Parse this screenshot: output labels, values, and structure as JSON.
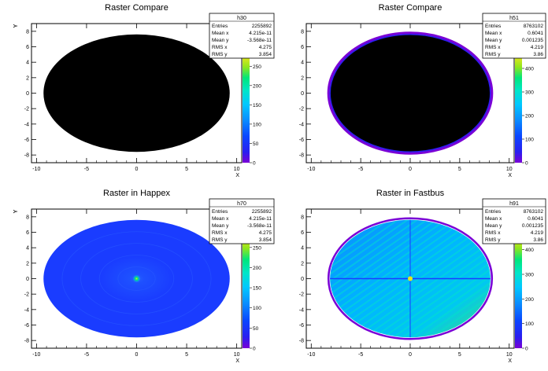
{
  "chart_data": [
    {
      "type": "heatmap",
      "title": "Raster Compare",
      "xlabel": "X",
      "ylabel": "Y",
      "xlim": [
        -10.5,
        10.5
      ],
      "ylim": [
        -9,
        9
      ],
      "x_ticks": [
        -10,
        -5,
        0,
        5,
        10
      ],
      "y_ticks": [
        -8,
        -6,
        -4,
        -2,
        0,
        2,
        4,
        6,
        8
      ],
      "z_ticks": [
        0,
        50,
        100,
        150,
        200,
        250
      ],
      "zlim": [
        0,
        275
      ],
      "fill": "black",
      "shape": "ellipse",
      "center": [
        0,
        0
      ],
      "radii": [
        9.3,
        7.6
      ],
      "stats": {
        "name": "h30",
        "rows": [
          {
            "label": "Entries",
            "value": "2255892"
          },
          {
            "label": "Mean x",
            "value": "4.215e-11"
          },
          {
            "label": "Mean y",
            "value": "-3.568e-11"
          },
          {
            "label": "RMS x",
            "value": "4.275"
          },
          {
            "label": "RMS y",
            "value": "3.854"
          }
        ]
      }
    },
    {
      "type": "heatmap",
      "title": "Raster Compare",
      "xlabel": "X",
      "ylabel": "Y",
      "xlim": [
        -10.5,
        10.5
      ],
      "ylim": [
        -9,
        9
      ],
      "x_ticks": [
        -10,
        -5,
        0,
        5,
        10
      ],
      "y_ticks": [
        -8,
        -6,
        -4,
        -2,
        0,
        2,
        4,
        6,
        8
      ],
      "z_ticks": [
        0,
        100,
        200,
        300,
        400
      ],
      "zlim": [
        0,
        450
      ],
      "fill": "black-with-purple-rim",
      "shape": "ellipse",
      "center": [
        0,
        0
      ],
      "radii": [
        8.1,
        7.6
      ],
      "stats": {
        "name": "h51",
        "rows": [
          {
            "label": "Entries",
            "value": "8763102"
          },
          {
            "label": "Mean x",
            "value": "0.6041"
          },
          {
            "label": "Mean y",
            "value": "0.001235"
          },
          {
            "label": "RMS x",
            "value": "4.219"
          },
          {
            "label": "RMS y",
            "value": "3.86"
          }
        ]
      }
    },
    {
      "type": "heatmap",
      "title": "Raster in Happex",
      "xlabel": "X",
      "ylabel": "Y",
      "xlim": [
        -10.5,
        10.5
      ],
      "ylim": [
        -9,
        9
      ],
      "x_ticks": [
        -10,
        -5,
        0,
        5,
        10
      ],
      "y_ticks": [
        -8,
        -6,
        -4,
        -2,
        0,
        2,
        4,
        6,
        8
      ],
      "z_ticks": [
        0,
        50,
        100,
        150,
        200,
        250
      ],
      "zlim": [
        0,
        275
      ],
      "fill": "blue-uniform-hotspot-center",
      "shape": "ellipse",
      "center": [
        0,
        0
      ],
      "radii": [
        9.3,
        7.6
      ],
      "stats": {
        "name": "h70",
        "rows": [
          {
            "label": "Entries",
            "value": "2255892"
          },
          {
            "label": "Mean x",
            "value": "4.215e-11"
          },
          {
            "label": "Mean y",
            "value": "-3.568e-11"
          },
          {
            "label": "RMS x",
            "value": "4.275"
          },
          {
            "label": "RMS y",
            "value": "3.854"
          }
        ]
      }
    },
    {
      "type": "heatmap",
      "title": "Raster in Fastbus",
      "xlabel": "X",
      "ylabel": "Y",
      "xlim": [
        -10.5,
        10.5
      ],
      "ylim": [
        -9,
        9
      ],
      "x_ticks": [
        -10,
        -5,
        0,
        5,
        10
      ],
      "y_ticks": [
        -8,
        -6,
        -4,
        -2,
        0,
        2,
        4,
        6,
        8
      ],
      "z_ticks": [
        0,
        100,
        200,
        300,
        400
      ],
      "zlim": [
        0,
        450
      ],
      "fill": "cyan-green-striped",
      "shape": "ellipse",
      "center": [
        0,
        0
      ],
      "radii": [
        8.1,
        7.6
      ],
      "stats": {
        "name": "h91",
        "rows": [
          {
            "label": "Entries",
            "value": "8763102"
          },
          {
            "label": "Mean x",
            "value": "0.6041"
          },
          {
            "label": "Mean y",
            "value": "0.001235"
          },
          {
            "label": "RMS x",
            "value": "4.219"
          },
          {
            "label": "RMS y",
            "value": "3.86"
          }
        ]
      }
    }
  ],
  "colors": {
    "palette": [
      "#7a00d6",
      "#2a1ef0",
      "#0a46ff",
      "#0a8cff",
      "#00c8ff",
      "#00e6c8",
      "#00e67a",
      "#30e61e",
      "#8ee61e",
      "#d2e61e",
      "#e6e61e"
    ],
    "blue_fill": "#1a3cff",
    "cyan_fill": "#00b4ff",
    "rim": "#6a1ee6",
    "frame": "#000000"
  }
}
